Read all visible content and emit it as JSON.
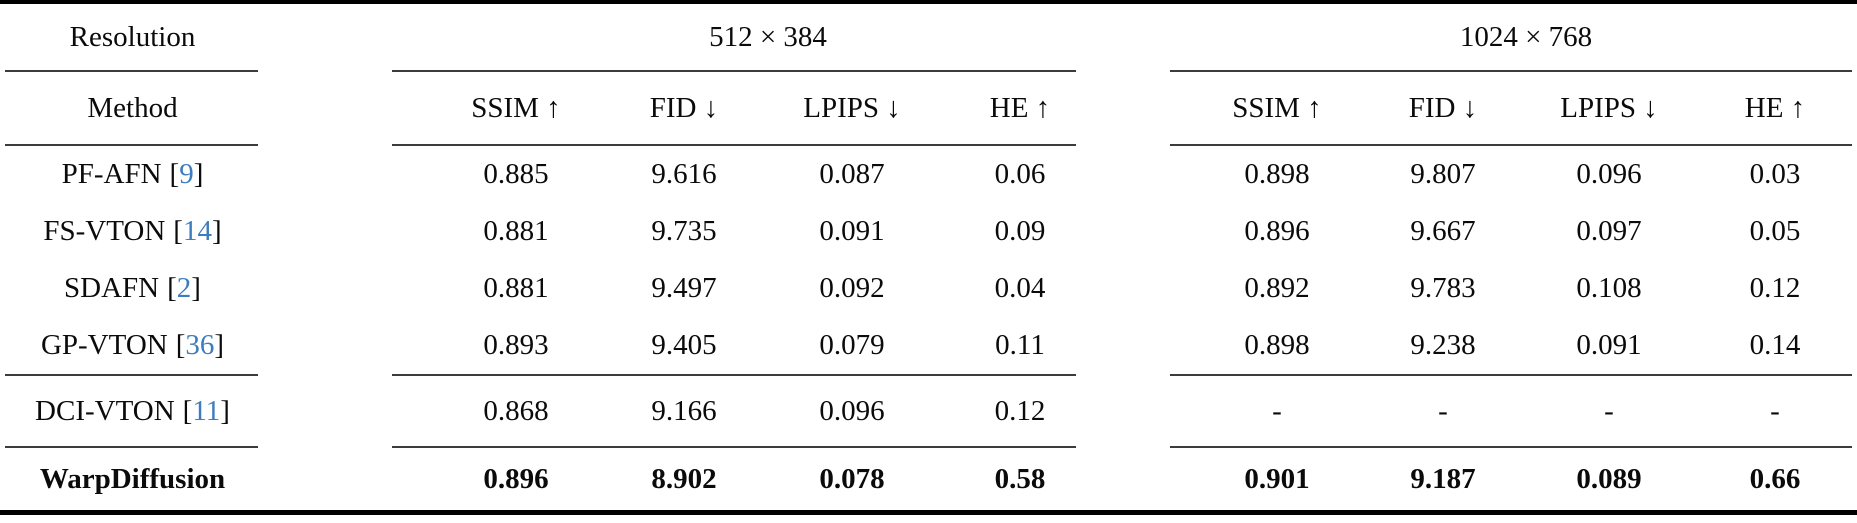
{
  "colors": {
    "citation": "#3d7dbf",
    "toprule": "#000000",
    "midrule": "#3c3c3c",
    "text": "#0b0b0b"
  },
  "punct": {
    "cite_open": "[",
    "cite_close": "]"
  },
  "header": {
    "resolution_label": "Resolution",
    "method_label": "Method",
    "group1_title": "512 × 384",
    "group2_title": "1024 × 768",
    "metrics": [
      "SSIM ↑",
      "FID ↓",
      "LPIPS ↓",
      "HE ↑"
    ]
  },
  "rows": [
    {
      "method": "PF-AFN",
      "cite": "9",
      "v": [
        "0.885",
        "9.616",
        "0.087",
        "0.06",
        "0.898",
        "9.807",
        "0.096",
        "0.03"
      ]
    },
    {
      "method": "FS-VTON",
      "cite": "14",
      "v": [
        "0.881",
        "9.735",
        "0.091",
        "0.09",
        "0.896",
        "9.667",
        "0.097",
        "0.05"
      ]
    },
    {
      "method": "SDAFN",
      "cite": "2",
      "v": [
        "0.881",
        "9.497",
        "0.092",
        "0.04",
        "0.892",
        "9.783",
        "0.108",
        "0.12"
      ]
    },
    {
      "method": "GP-VTON",
      "cite": "36",
      "v": [
        "0.893",
        "9.405",
        "0.079",
        "0.11",
        "0.898",
        "9.238",
        "0.091",
        "0.14"
      ]
    },
    {
      "method": "DCI-VTON",
      "cite": "11",
      "v": [
        "0.868",
        "9.166",
        "0.096",
        "0.12",
        "-",
        "-",
        "-",
        "-"
      ]
    },
    {
      "method": "WarpDiffusion",
      "cite": null,
      "v": [
        "0.896",
        "8.902",
        "0.078",
        "0.58",
        "0.901",
        "9.187",
        "0.089",
        "0.66"
      ]
    }
  ]
}
